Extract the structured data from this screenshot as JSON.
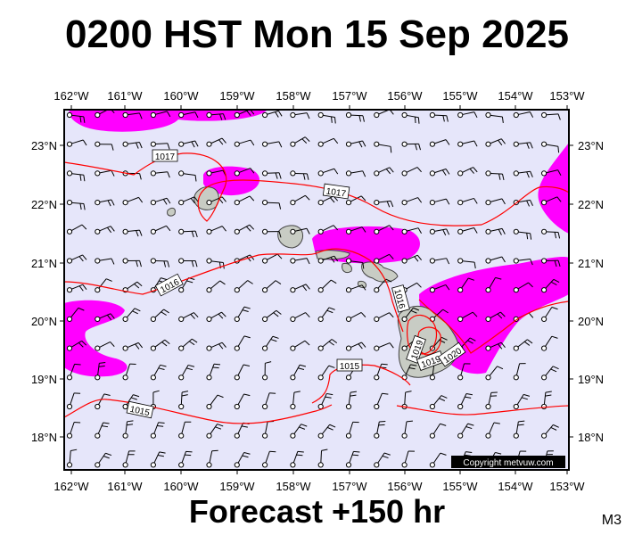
{
  "title": "0200 HST Mon 15 Sep 2025",
  "subtitle": "Forecast +150 hr",
  "model_code": "M3",
  "copyright": "Copyright metvuw.com",
  "colors": {
    "background": "#e6e6fa",
    "rain": "#ff00ff",
    "isobar": "#ff0000",
    "land": "#c8ccc4",
    "wind": "#000000"
  },
  "lon_labels": [
    "162°W",
    "161°W",
    "160°W",
    "159°W",
    "158°W",
    "157°W",
    "156°W",
    "155°W",
    "154°W",
    "153°W"
  ],
  "lat_labels": [
    "23°N",
    "22°N",
    "21°N",
    "20°N",
    "19°N",
    "18°N"
  ],
  "isobar_labels": [
    "1017",
    "1017",
    "1016",
    "1016",
    "1015",
    "1015",
    "1019",
    "1019",
    "1020"
  ]
}
